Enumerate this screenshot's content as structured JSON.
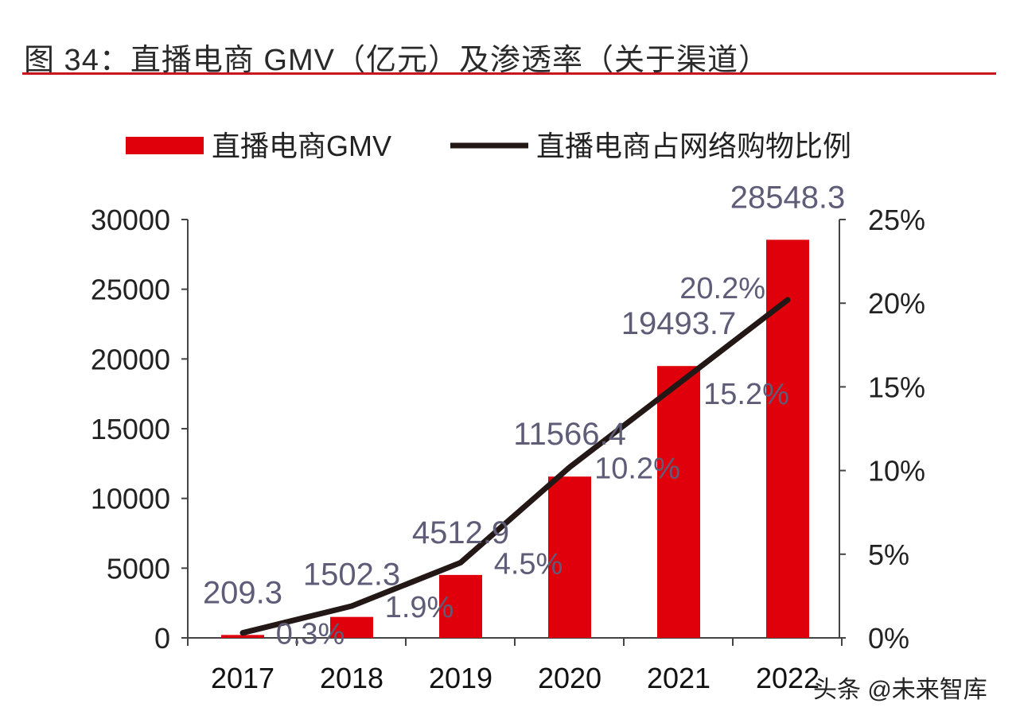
{
  "title": "图 34：直播电商 GMV（亿元）及渗透率（关于渠道）",
  "watermark": "头条 @未来智库",
  "chart_data": {
    "type": "bar+line",
    "categories": [
      "2017",
      "2018",
      "2019",
      "2020",
      "2021",
      "2022"
    ],
    "series": [
      {
        "name": "直播电商GMV",
        "type": "bar",
        "axis": "left",
        "color": "#e0000b",
        "values": [
          209.3,
          1502.3,
          4512.9,
          11566.4,
          19493.7,
          28548.3
        ],
        "labels": [
          "209.3",
          "1502.3",
          "4512.9",
          "11566.4",
          "19493.7",
          "28548.3"
        ]
      },
      {
        "name": "直播电商占网络购物比例",
        "type": "line",
        "axis": "right",
        "color": "#231815",
        "values": [
          0.3,
          1.9,
          4.5,
          10.2,
          15.2,
          20.2
        ],
        "labels": [
          "0.3%",
          "1.9%",
          "4.5%",
          "10.2%",
          "15.2%",
          "20.2%"
        ]
      }
    ],
    "y_left": {
      "min": 0,
      "max": 30000,
      "ticks": [
        "0",
        "5000",
        "10000",
        "15000",
        "20000",
        "25000",
        "30000"
      ]
    },
    "y_right": {
      "min": 0,
      "max": 25,
      "ticks": [
        "0%",
        "5%",
        "10%",
        "15%",
        "20%",
        "25%"
      ]
    },
    "legend": "top",
    "grid": false,
    "label_color": "#5f5c78"
  }
}
